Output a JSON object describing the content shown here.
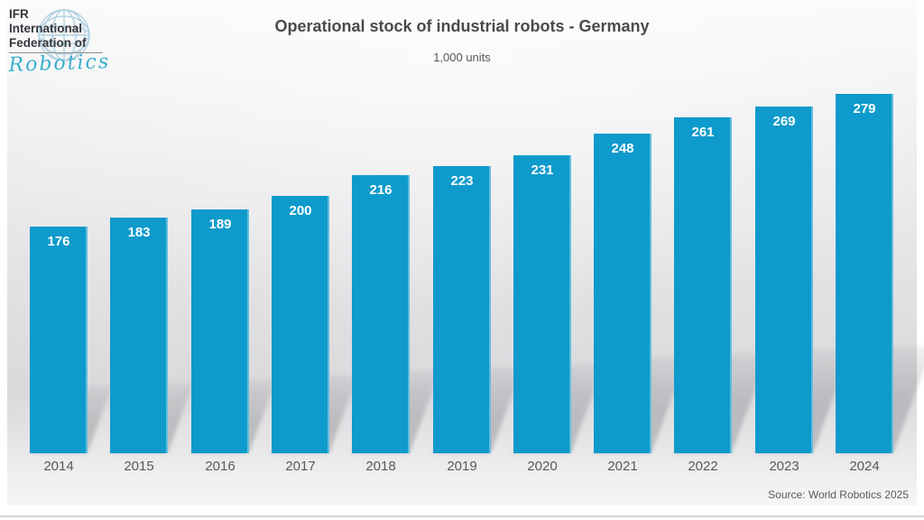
{
  "logo": {
    "line1": "IFR",
    "line2": "International",
    "line3": "Federation of",
    "script": "Robotics",
    "globe_icon": "globe-icon",
    "script_color": "#3aafce",
    "text_color": "#34373c"
  },
  "header": {
    "title": "Operational stock of industrial robots - Germany",
    "subtitle": "1,000 units"
  },
  "footer": {
    "source": "Source: World Robotics 2025"
  },
  "chart_data": {
    "type": "bar",
    "title": "Operational stock of industrial robots - Germany",
    "subtitle": "1,000 units",
    "unit": "1,000 units",
    "categories": [
      "2014",
      "2015",
      "2016",
      "2017",
      "2018",
      "2019",
      "2020",
      "2021",
      "2022",
      "2023",
      "2024"
    ],
    "values": [
      176,
      183,
      189,
      200,
      216,
      223,
      231,
      248,
      261,
      269,
      279
    ],
    "xlabel": "",
    "ylabel": "1,000 units",
    "ylim": [
      0,
      285
    ],
    "grid": false,
    "legend": false,
    "data_labels": "inside-top, white, bold",
    "bar_color": "#0e9acb",
    "label_color": "#ffffff",
    "axis_label_color": "#58595b",
    "source": "Source: World Robotics 2025"
  }
}
